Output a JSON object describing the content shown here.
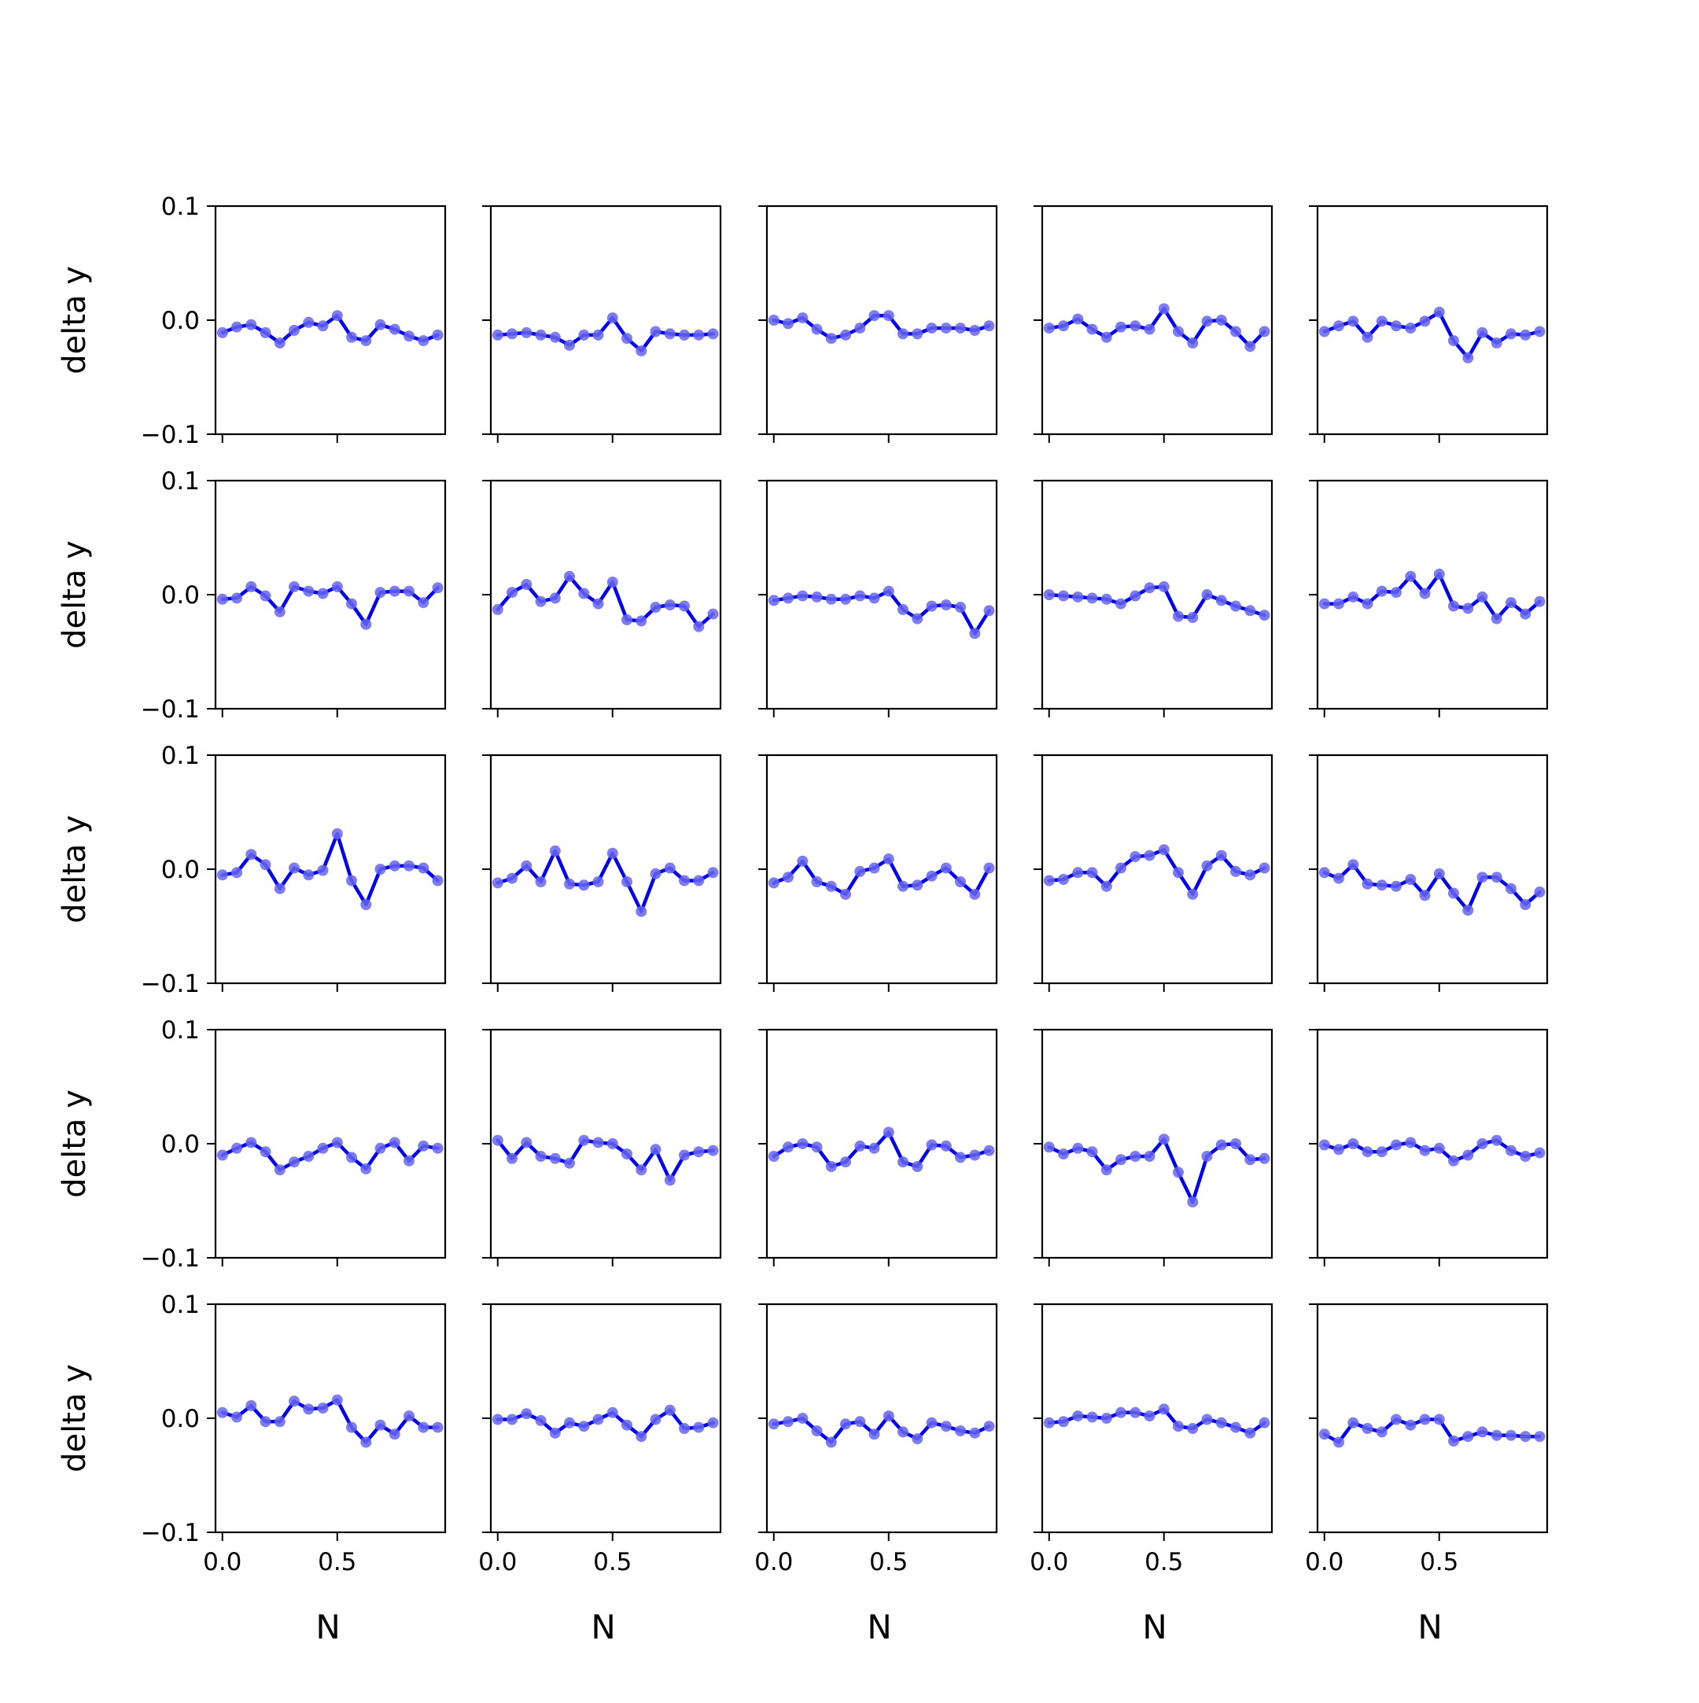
{
  "figure": {
    "rows": 5,
    "cols": 5,
    "line_color": "#0000ee",
    "marker_color": "#6666ee"
  },
  "chart_data": {
    "type": "line",
    "xlabel": "N",
    "ylabel": "delta y",
    "ylim": [
      -0.1,
      0.1
    ],
    "xlim": [
      -0.03,
      0.97
    ],
    "y_ticks": [
      0.1,
      0.0,
      -0.1
    ],
    "y_tick_labels": [
      "0.1",
      "0.0",
      "−0.1"
    ],
    "x_ticks": [
      0.0,
      0.5
    ],
    "x_tick_labels": [
      "0.0",
      "0.5"
    ],
    "x": [
      0.0,
      0.0625,
      0.125,
      0.1875,
      0.25,
      0.3125,
      0.375,
      0.4375,
      0.5,
      0.5625,
      0.625,
      0.6875,
      0.75,
      0.8125,
      0.875,
      0.9375
    ],
    "panels": [
      {
        "row": 0,
        "col": 0,
        "values": [
          -0.011,
          -0.006,
          -0.004,
          -0.011,
          -0.02,
          -0.009,
          -0.002,
          -0.005,
          0.004,
          -0.015,
          -0.018,
          -0.004,
          -0.008,
          -0.014,
          -0.018,
          -0.013
        ]
      },
      {
        "row": 0,
        "col": 1,
        "values": [
          -0.013,
          -0.012,
          -0.011,
          -0.013,
          -0.015,
          -0.022,
          -0.013,
          -0.013,
          0.002,
          -0.016,
          -0.027,
          -0.01,
          -0.012,
          -0.013,
          -0.013,
          -0.012
        ]
      },
      {
        "row": 0,
        "col": 2,
        "values": [
          0.0,
          -0.003,
          0.002,
          -0.008,
          -0.016,
          -0.013,
          -0.007,
          0.004,
          0.004,
          -0.012,
          -0.012,
          -0.007,
          -0.007,
          -0.007,
          -0.009,
          -0.005
        ]
      },
      {
        "row": 0,
        "col": 3,
        "values": [
          -0.007,
          -0.005,
          0.001,
          -0.008,
          -0.015,
          -0.006,
          -0.005,
          -0.008,
          0.01,
          -0.01,
          -0.02,
          -0.001,
          0.0,
          -0.01,
          -0.023,
          -0.01
        ]
      },
      {
        "row": 0,
        "col": 4,
        "values": [
          -0.01,
          -0.005,
          -0.001,
          -0.015,
          -0.001,
          -0.005,
          -0.007,
          -0.001,
          0.007,
          -0.018,
          -0.033,
          -0.011,
          -0.02,
          -0.012,
          -0.013,
          -0.01
        ]
      },
      {
        "row": 1,
        "col": 0,
        "values": [
          -0.004,
          -0.003,
          0.007,
          -0.001,
          -0.015,
          0.007,
          0.003,
          0.001,
          0.007,
          -0.008,
          -0.026,
          0.002,
          0.003,
          0.003,
          -0.007,
          0.006
        ]
      },
      {
        "row": 1,
        "col": 1,
        "values": [
          -0.013,
          0.002,
          0.009,
          -0.006,
          -0.003,
          0.016,
          0.001,
          -0.008,
          0.011,
          -0.022,
          -0.023,
          -0.011,
          -0.009,
          -0.01,
          -0.028,
          -0.017
        ]
      },
      {
        "row": 1,
        "col": 2,
        "values": [
          -0.005,
          -0.003,
          -0.001,
          -0.002,
          -0.004,
          -0.004,
          -0.001,
          -0.003,
          0.003,
          -0.013,
          -0.021,
          -0.01,
          -0.009,
          -0.011,
          -0.034,
          -0.014
        ]
      },
      {
        "row": 1,
        "col": 3,
        "values": [
          0.0,
          -0.001,
          -0.002,
          -0.003,
          -0.004,
          -0.008,
          -0.001,
          0.006,
          0.007,
          -0.019,
          -0.02,
          0.0,
          -0.005,
          -0.01,
          -0.014,
          -0.018
        ]
      },
      {
        "row": 1,
        "col": 4,
        "values": [
          -0.008,
          -0.008,
          -0.002,
          -0.008,
          0.003,
          0.002,
          0.016,
          0.001,
          0.018,
          -0.01,
          -0.012,
          -0.002,
          -0.021,
          -0.007,
          -0.017,
          -0.006
        ]
      },
      {
        "row": 2,
        "col": 0,
        "values": [
          -0.005,
          -0.003,
          0.013,
          0.004,
          -0.017,
          0.001,
          -0.005,
          -0.001,
          0.031,
          -0.01,
          -0.031,
          0.0,
          0.003,
          0.003,
          0.001,
          -0.01
        ]
      },
      {
        "row": 2,
        "col": 1,
        "values": [
          -0.012,
          -0.008,
          0.003,
          -0.011,
          0.016,
          -0.013,
          -0.014,
          -0.011,
          0.014,
          -0.011,
          -0.037,
          -0.004,
          0.001,
          -0.01,
          -0.01,
          -0.003
        ]
      },
      {
        "row": 2,
        "col": 2,
        "values": [
          -0.012,
          -0.007,
          0.007,
          -0.011,
          -0.015,
          -0.022,
          -0.002,
          0.001,
          0.009,
          -0.015,
          -0.014,
          -0.006,
          0.001,
          -0.011,
          -0.022,
          0.001
        ]
      },
      {
        "row": 2,
        "col": 3,
        "values": [
          -0.01,
          -0.009,
          -0.003,
          -0.003,
          -0.015,
          0.001,
          0.011,
          0.012,
          0.017,
          -0.003,
          -0.022,
          0.003,
          0.012,
          -0.002,
          -0.005,
          0.001
        ]
      },
      {
        "row": 2,
        "col": 4,
        "values": [
          -0.003,
          -0.008,
          0.004,
          -0.013,
          -0.014,
          -0.015,
          -0.009,
          -0.023,
          -0.004,
          -0.021,
          -0.036,
          -0.007,
          -0.007,
          -0.017,
          -0.031,
          -0.02
        ]
      },
      {
        "row": 3,
        "col": 0,
        "values": [
          -0.01,
          -0.004,
          0.001,
          -0.007,
          -0.023,
          -0.016,
          -0.011,
          -0.004,
          0.001,
          -0.012,
          -0.022,
          -0.004,
          0.001,
          -0.015,
          -0.002,
          -0.004
        ]
      },
      {
        "row": 3,
        "col": 1,
        "values": [
          0.003,
          -0.013,
          0.001,
          -0.011,
          -0.013,
          -0.017,
          0.003,
          0.001,
          0.0,
          -0.009,
          -0.023,
          -0.005,
          -0.032,
          -0.01,
          -0.007,
          -0.006
        ]
      },
      {
        "row": 3,
        "col": 2,
        "values": [
          -0.011,
          -0.003,
          0.0,
          -0.003,
          -0.02,
          -0.016,
          -0.002,
          -0.004,
          0.01,
          -0.016,
          -0.02,
          -0.001,
          -0.002,
          -0.012,
          -0.01,
          -0.006
        ]
      },
      {
        "row": 3,
        "col": 3,
        "values": [
          -0.003,
          -0.009,
          -0.004,
          -0.007,
          -0.023,
          -0.014,
          -0.011,
          -0.011,
          0.004,
          -0.025,
          -0.051,
          -0.011,
          -0.001,
          0.0,
          -0.014,
          -0.013
        ]
      },
      {
        "row": 3,
        "col": 4,
        "values": [
          -0.001,
          -0.005,
          0.0,
          -0.007,
          -0.007,
          -0.001,
          0.001,
          -0.006,
          -0.004,
          -0.015,
          -0.01,
          0.0,
          0.003,
          -0.006,
          -0.011,
          -0.008
        ]
      },
      {
        "row": 4,
        "col": 0,
        "values": [
          0.005,
          0.001,
          0.011,
          -0.003,
          -0.003,
          0.015,
          0.008,
          0.009,
          0.016,
          -0.008,
          -0.021,
          -0.006,
          -0.014,
          0.002,
          -0.008,
          -0.008
        ]
      },
      {
        "row": 4,
        "col": 1,
        "values": [
          -0.001,
          -0.001,
          0.004,
          -0.002,
          -0.013,
          -0.004,
          -0.007,
          -0.001,
          0.005,
          -0.006,
          -0.016,
          -0.001,
          0.007,
          -0.009,
          -0.008,
          -0.004
        ]
      },
      {
        "row": 4,
        "col": 2,
        "values": [
          -0.005,
          -0.003,
          0.0,
          -0.011,
          -0.021,
          -0.005,
          -0.003,
          -0.014,
          0.002,
          -0.012,
          -0.018,
          -0.004,
          -0.007,
          -0.011,
          -0.013,
          -0.007
        ]
      },
      {
        "row": 4,
        "col": 3,
        "values": [
          -0.004,
          -0.003,
          0.002,
          0.001,
          0.0,
          0.005,
          0.005,
          0.002,
          0.008,
          -0.007,
          -0.009,
          -0.001,
          -0.004,
          -0.008,
          -0.013,
          -0.004
        ]
      },
      {
        "row": 4,
        "col": 4,
        "values": [
          -0.014,
          -0.021,
          -0.004,
          -0.009,
          -0.012,
          -0.001,
          -0.006,
          -0.001,
          -0.001,
          -0.02,
          -0.016,
          -0.012,
          -0.015,
          -0.015,
          -0.016,
          -0.016
        ]
      }
    ]
  }
}
